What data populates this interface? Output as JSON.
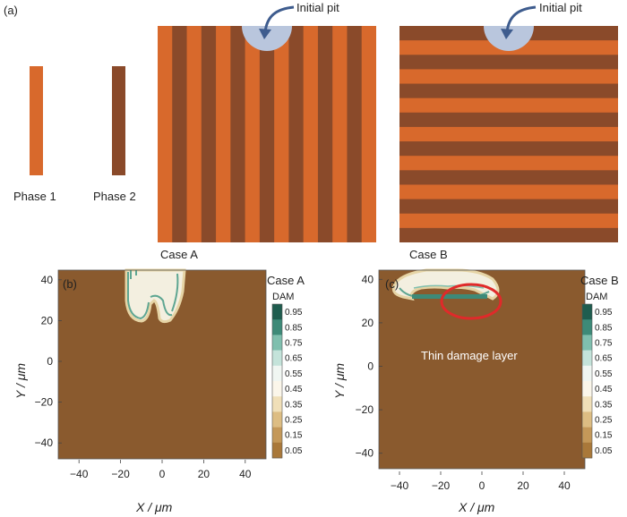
{
  "panel_a": {
    "letter": "(a)",
    "phase1_label": "Phase 1",
    "phase2_label": "Phase 2",
    "caseA_label": "Case A",
    "caseB_label": "Case B",
    "pit_label_A": "Initial pit",
    "pit_label_B": "Initial pit",
    "colors": {
      "phase1": "#d8692c",
      "phase2": "#8a4a2a",
      "pit": "#b9c6dd",
      "arrow": "#3e5c8e"
    }
  },
  "panel_b": {
    "letter": "(b)",
    "case_label": "Case A",
    "colorbar_title": "DAM",
    "xlabel": "X / μm",
    "ylabel": "Y / μm"
  },
  "panel_c": {
    "letter": "(c)",
    "case_label": "Case B",
    "colorbar_title": "DAM",
    "xlabel": "X / μm",
    "ylabel": "Y / μm",
    "annotation": "Thin damage layer"
  },
  "colorbar_ticks": [
    "0.95",
    "0.85",
    "0.75",
    "0.65",
    "0.55",
    "0.45",
    "0.35",
    "0.25",
    "0.15",
    "0.05"
  ],
  "colorbar_colors": [
    "#1f5d4f",
    "#3d8a78",
    "#7fbfae",
    "#c4e3da",
    "#f0f6f2",
    "#fbf6ea",
    "#f0dfb8",
    "#ddbd83",
    "#c49859",
    "#a9783a"
  ],
  "background_color": "#8a5a2e",
  "chart_data": [
    {
      "type": "heatmap",
      "title": "Case A",
      "xlabel": "X / μm",
      "ylabel": "Y / μm",
      "xlim": [
        -50,
        50
      ],
      "ylim": [
        -50,
        50
      ],
      "xticks": [
        "−40",
        "−20",
        "0",
        "20",
        "40"
      ],
      "yticks": [
        "40",
        "20",
        "0",
        "−20",
        "−40"
      ],
      "colorbar": {
        "label": "DAM",
        "range": [
          0,
          1
        ]
      }
    },
    {
      "type": "heatmap",
      "title": "Case B",
      "xlabel": "X / μm",
      "ylabel": "Y / μm",
      "xlim": [
        -50,
        50
      ],
      "ylim": [
        -50,
        50
      ],
      "xticks": [
        "−40",
        "−20",
        "0",
        "20",
        "40"
      ],
      "yticks": [
        "40",
        "20",
        "0",
        "−20",
        "−40"
      ],
      "colorbar": {
        "label": "DAM",
        "range": [
          0,
          1
        ]
      }
    }
  ]
}
